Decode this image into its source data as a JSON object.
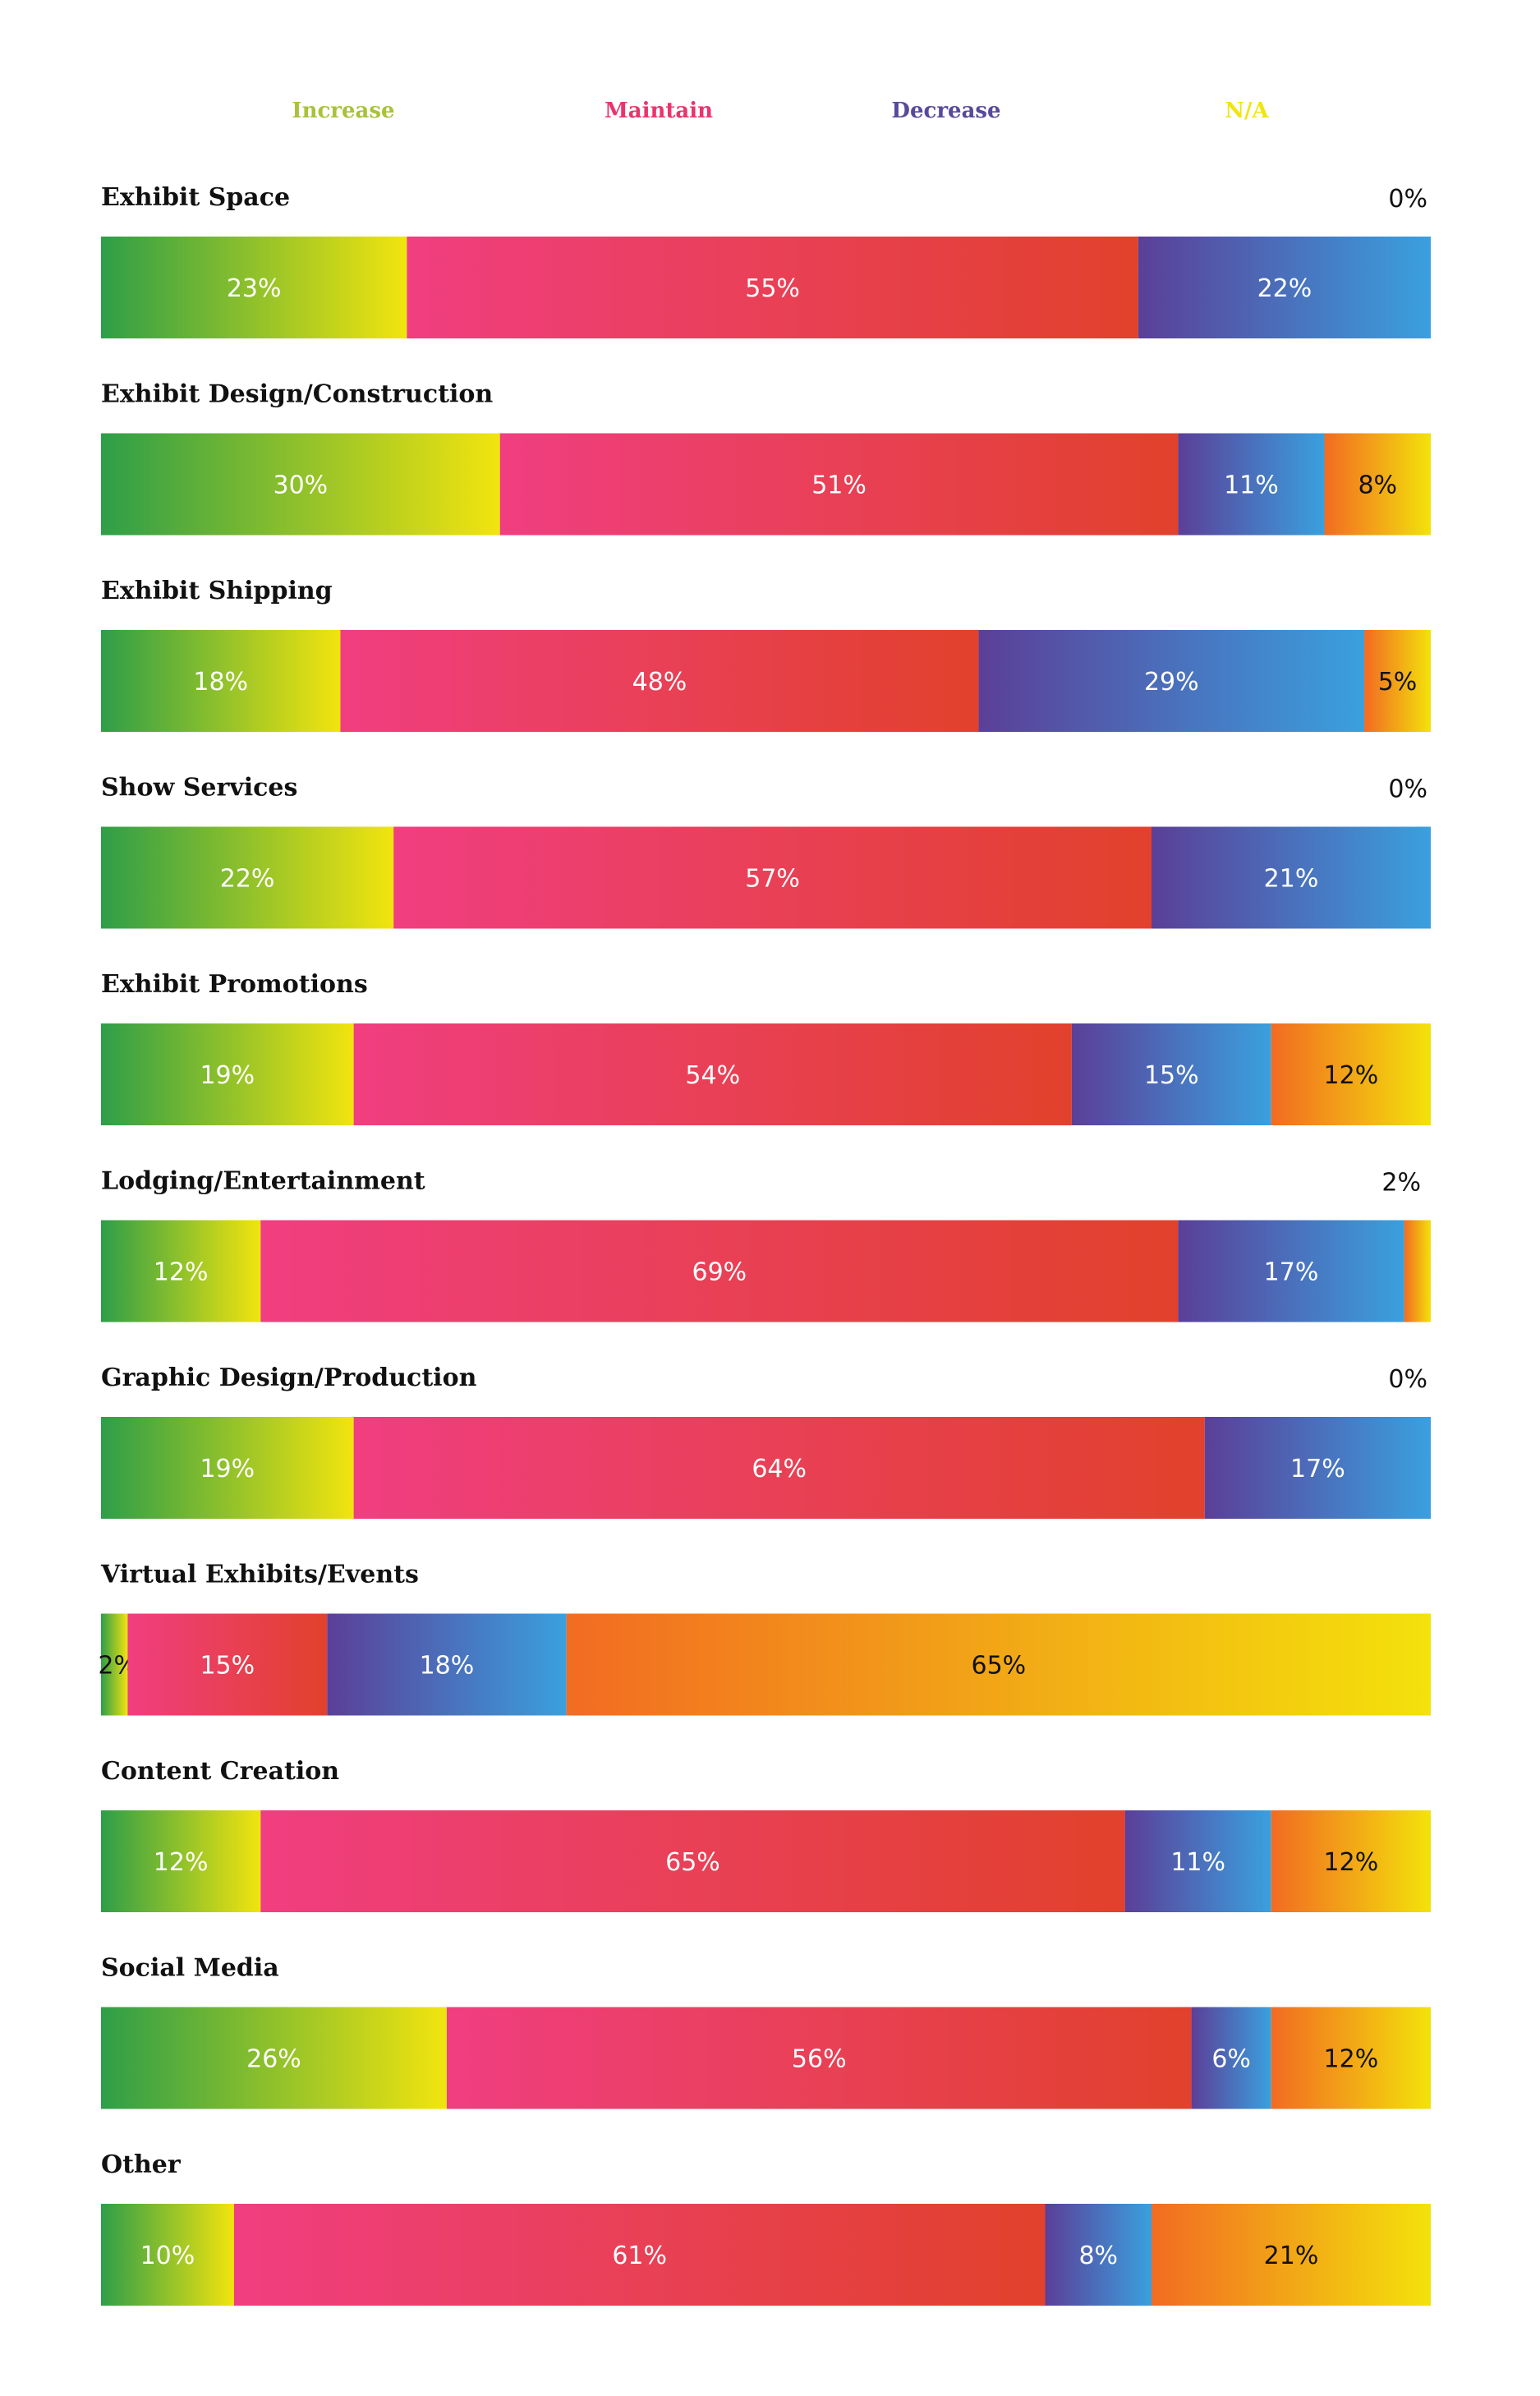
{
  "chart_data": {
    "type": "bar",
    "orientation": "horizontal",
    "stacked": true,
    "normalized_percent": true,
    "grid": false,
    "legend_placement": "top",
    "legend": [
      {
        "name": "Increase",
        "color": "#a9c23a"
      },
      {
        "name": "Maintain",
        "color": "#e8356d"
      },
      {
        "name": "Decrease",
        "color": "#574a9c"
      },
      {
        "name": "N/A",
        "color": "#efe512"
      }
    ],
    "series_gradients": [
      [
        "#2e9e48",
        "#f2e40e"
      ],
      [
        "#f03e80",
        "#e2412c"
      ],
      [
        "#5b3f98",
        "#3aa0de"
      ],
      [
        "#f26b22",
        "#f3e20b"
      ]
    ],
    "categories": [
      "Exhibit Space",
      "Exhibit Design/Construction",
      "Exhibit Shipping",
      "Show Services",
      "Exhibit Promotions",
      "Lodging/Entertainment",
      "Graphic Design/Production",
      "Virtual Exhibits/Events",
      "Content Creation",
      "Social Media",
      "Other"
    ],
    "series": [
      {
        "name": "Increase",
        "values": [
          23,
          30,
          18,
          22,
          19,
          12,
          19,
          2,
          12,
          26,
          10
        ]
      },
      {
        "name": "Maintain",
        "values": [
          55,
          51,
          48,
          57,
          54,
          69,
          64,
          15,
          65,
          56,
          61
        ]
      },
      {
        "name": "Decrease",
        "values": [
          22,
          11,
          29,
          21,
          15,
          17,
          17,
          18,
          11,
          6,
          8
        ]
      },
      {
        "name": "N/A",
        "values": [
          0,
          8,
          5,
          0,
          12,
          2,
          0,
          65,
          12,
          12,
          21
        ]
      }
    ],
    "labels": [
      [
        "23%",
        "55%",
        "22%",
        "0%"
      ],
      [
        "30%",
        "51%",
        "11%",
        "8%"
      ],
      [
        "18%",
        "48%",
        "29%",
        "5%"
      ],
      [
        "22%",
        "57%",
        "21%",
        "0%"
      ],
      [
        "19%",
        "54%",
        "15%",
        "12%"
      ],
      [
        "12%",
        "69%",
        "17%",
        "2%"
      ],
      [
        "19%",
        "64%",
        "17%",
        "0%"
      ],
      [
        "2%",
        "15%",
        "18%",
        "65%"
      ],
      [
        "12%",
        "65%",
        "11%",
        "12%"
      ],
      [
        "26%",
        "56%",
        "6%",
        "12%"
      ],
      [
        "10%",
        "61%",
        "8%",
        "21%"
      ]
    ],
    "label_colors": [
      "#ffffff",
      "#ffffff",
      "#ffffff",
      "#111111"
    ],
    "xlim": [
      0,
      100
    ]
  }
}
